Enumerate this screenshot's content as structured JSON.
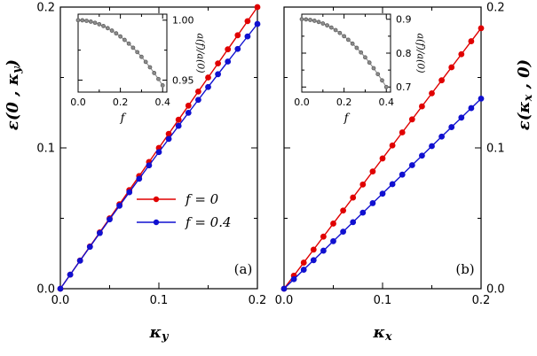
{
  "figure": {
    "background": "#ffffff",
    "axis_color": "#000000",
    "accent_red": "#e00000",
    "accent_blue": "#1010d0",
    "inset_gray": "#8c8c8c"
  },
  "chart_data": [
    {
      "id": "panel-a",
      "type": "line",
      "title": "",
      "xlabel": "κ_y",
      "ylabel": "ε(0 , κ_y)",
      "ylabel_pre": "ε(0 , κ",
      "ylabel_sub": "y",
      "ylabel_post": ")",
      "xlabel_base": "κ",
      "xlabel_sub": "y",
      "panel_label": "(a)",
      "xlim": [
        0,
        0.2
      ],
      "ylim": [
        0,
        0.2
      ],
      "grid": false,
      "legend_position": "center-right",
      "xticks": {
        "major": [
          0,
          0.1,
          0.2
        ],
        "labels": [
          "0.0",
          "0.1",
          "0.2"
        ],
        "minor": [
          0.05,
          0.15
        ]
      },
      "yticks": {
        "major": [
          0,
          0.1,
          0.2
        ],
        "labels": [
          "0.0",
          "0.1",
          "0.2"
        ],
        "minor": [
          0.05,
          0.15
        ]
      },
      "legend": [
        {
          "label": "f = 0",
          "color": "#e00000"
        },
        {
          "label": "f = 0.4",
          "color": "#1010d0"
        }
      ],
      "series": [
        {
          "name": "f = 0",
          "color": "#e00000",
          "x": [
            0,
            0.01,
            0.02,
            0.03,
            0.04,
            0.05,
            0.06,
            0.07,
            0.08,
            0.09,
            0.1,
            0.11,
            0.12,
            0.13,
            0.14,
            0.15,
            0.16,
            0.17,
            0.18,
            0.19,
            0.2
          ],
          "y": [
            0,
            0.01,
            0.02,
            0.03,
            0.04,
            0.05,
            0.06,
            0.07,
            0.08,
            0.09,
            0.1,
            0.11,
            0.12,
            0.13,
            0.14,
            0.15,
            0.16,
            0.17,
            0.18,
            0.19,
            0.2
          ]
        },
        {
          "name": "f = 0.4",
          "color": "#1010d0",
          "x": [
            0,
            0.01,
            0.02,
            0.03,
            0.04,
            0.05,
            0.06,
            0.07,
            0.08,
            0.09,
            0.1,
            0.11,
            0.12,
            0.13,
            0.14,
            0.15,
            0.16,
            0.17,
            0.18,
            0.19,
            0.2
          ],
          "y": [
            0,
            0.00997,
            0.01988,
            0.02973,
            0.03952,
            0.04925,
            0.05892,
            0.06853,
            0.07808,
            0.08757,
            0.097,
            0.10637,
            0.11568,
            0.12493,
            0.13412,
            0.14325,
            0.15232,
            0.16133,
            0.17028,
            0.17917,
            0.188
          ]
        }
      ]
    },
    {
      "id": "panel-b",
      "type": "line",
      "title": "",
      "xlabel": "κ_x",
      "ylabel": "ε(κ_x , 0)",
      "ylabel_pre": "ε(κ",
      "ylabel_sub": "x",
      "ylabel_post": " , 0)",
      "xlabel_base": "κ",
      "xlabel_sub": "x",
      "panel_label": "(b)",
      "xlim": [
        0,
        0.2
      ],
      "ylim": [
        0,
        0.2
      ],
      "grid": false,
      "xticks": {
        "major": [
          0,
          0.1,
          0.2
        ],
        "labels": [
          "0.0",
          "0.1",
          "0.2"
        ],
        "minor": [
          0.05,
          0.15
        ]
      },
      "yticks": {
        "major": [
          0,
          0.1,
          0.2
        ],
        "labels": [
          "0.0",
          "0.1",
          "0.2"
        ],
        "minor": [
          0.05,
          0.15
        ]
      },
      "series": [
        {
          "name": "f = 0",
          "color": "#e00000",
          "x": [
            0,
            0.01,
            0.02,
            0.03,
            0.04,
            0.05,
            0.06,
            0.07,
            0.08,
            0.09,
            0.1,
            0.11,
            0.12,
            0.13,
            0.14,
            0.15,
            0.16,
            0.17,
            0.18,
            0.19,
            0.2
          ],
          "y": [
            0,
            0.00925,
            0.0185,
            0.02775,
            0.037,
            0.04625,
            0.0555,
            0.06475,
            0.074,
            0.08325,
            0.0925,
            0.10175,
            0.111,
            0.12025,
            0.1295,
            0.13875,
            0.148,
            0.15725,
            0.1665,
            0.17575,
            0.185
          ]
        },
        {
          "name": "f = 0.4",
          "color": "#1010d0",
          "x": [
            0,
            0.01,
            0.02,
            0.03,
            0.04,
            0.05,
            0.06,
            0.07,
            0.08,
            0.09,
            0.1,
            0.11,
            0.12,
            0.13,
            0.14,
            0.15,
            0.16,
            0.17,
            0.18,
            0.19,
            0.2
          ],
          "y": [
            0,
            0.00675,
            0.0135,
            0.02025,
            0.027,
            0.03375,
            0.0405,
            0.04725,
            0.054,
            0.06075,
            0.0675,
            0.07425,
            0.081,
            0.08775,
            0.0945,
            0.10125,
            0.108,
            0.11475,
            0.1215,
            0.12825,
            0.135
          ]
        }
      ]
    },
    {
      "id": "inset-a",
      "type": "line",
      "title": "",
      "xlabel": "f",
      "ylabel": "a(f)/a(0)",
      "xlim": [
        0,
        0.42
      ],
      "ylim": [
        0.94,
        1.005
      ],
      "grid": false,
      "xticks": {
        "major": [
          0,
          0.2,
          0.4
        ],
        "labels": [
          "0.0",
          "0.2",
          "0.4"
        ],
        "minor": [
          0.1,
          0.3
        ]
      },
      "yticks": {
        "major": [
          0.95,
          1.0
        ],
        "labels": [
          "0.95",
          "1.00"
        ],
        "minor": [
          0.975
        ]
      },
      "series": [
        {
          "name": "a(f)/a(0)",
          "color": "#8c8c8c",
          "edge": "#5f5f5f",
          "x": [
            0,
            0.02,
            0.04,
            0.06,
            0.08,
            0.1,
            0.12,
            0.14,
            0.16,
            0.18,
            0.2,
            0.22,
            0.24,
            0.26,
            0.28,
            0.3,
            0.32,
            0.34,
            0.36,
            0.38,
            0.4
          ],
          "y": [
            1,
            0.99986,
            0.99946,
            0.99878,
            0.99782,
            0.9966,
            0.9951,
            0.99334,
            0.9913,
            0.98898,
            0.9864,
            0.98354,
            0.98042,
            0.97702,
            0.97334,
            0.9694,
            0.96518,
            0.9607,
            0.95594,
            0.9509,
            0.9456
          ]
        }
      ]
    },
    {
      "id": "inset-b",
      "type": "line",
      "title": "",
      "xlabel": "f",
      "ylabel": "a(f)/a(0)",
      "xlim": [
        0,
        0.42
      ],
      "ylim": [
        0.685,
        0.915
      ],
      "grid": false,
      "xticks": {
        "major": [
          0,
          0.2,
          0.4
        ],
        "labels": [
          "0.0",
          "0.2",
          "0.4"
        ],
        "minor": [
          0.1,
          0.3
        ]
      },
      "yticks": {
        "major": [
          0.7,
          0.8,
          0.9
        ],
        "labels": [
          "0.7",
          "0.8",
          "0.9"
        ],
        "minor": [
          0.75,
          0.85
        ]
      },
      "series": [
        {
          "name": "a(f)/a(0)",
          "color": "#8c8c8c",
          "edge": "#5f5f5f",
          "x": [
            0,
            0.02,
            0.04,
            0.06,
            0.08,
            0.1,
            0.12,
            0.14,
            0.16,
            0.18,
            0.2,
            0.22,
            0.24,
            0.26,
            0.28,
            0.3,
            0.32,
            0.34,
            0.36,
            0.38,
            0.4
          ],
          "y": [
            0.9,
            0.8995,
            0.898,
            0.8955,
            0.892,
            0.8875,
            0.882,
            0.8755,
            0.868,
            0.8595,
            0.85,
            0.8395,
            0.828,
            0.8155,
            0.802,
            0.7875,
            0.772,
            0.7555,
            0.738,
            0.7195,
            0.7
          ]
        }
      ]
    }
  ]
}
